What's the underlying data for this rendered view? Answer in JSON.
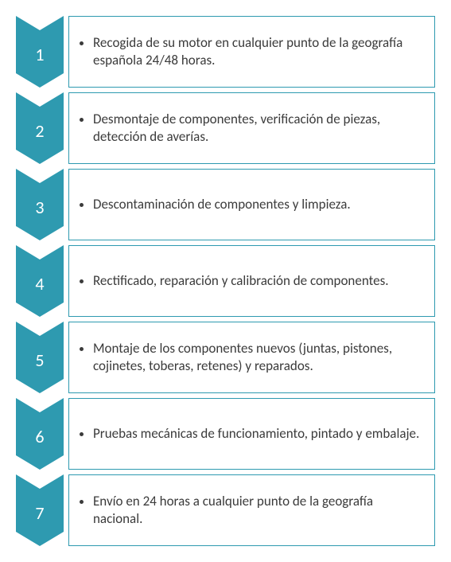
{
  "colors": {
    "chevron_fill": "#2e9ab0",
    "box_border": "#2e9ab0",
    "text_color": "#3b3b3b",
    "number_color": "#ffffff",
    "background": "#ffffff"
  },
  "typography": {
    "number_fontsize": 22,
    "text_fontsize": 17,
    "font_family": "Calibri, Arial, sans-serif"
  },
  "layout": {
    "chevron_width": 60,
    "step_height": 90,
    "gap": 6,
    "notch_depth": 18
  },
  "steps": [
    {
      "number": "1",
      "text": "Recogida de su motor en cualquier punto de la geografía española 24/48 horas."
    },
    {
      "number": "2",
      "text": "Desmontaje de componentes, verificación de piezas, detección de averías."
    },
    {
      "number": "3",
      "text": "Descontaminación de componentes y limpieza."
    },
    {
      "number": "4",
      "text": "Rectificado, reparación y calibración de componentes."
    },
    {
      "number": "5",
      "text": "Montaje de los componentes nuevos (juntas, pistones, cojinetes, toberas, retenes) y reparados."
    },
    {
      "number": "6",
      "text": "Pruebas mecánicas de funcionamiento, pintado y embalaje."
    },
    {
      "number": "7",
      "text": "Envío en 24 horas a cualquier punto de la geografía nacional."
    }
  ]
}
